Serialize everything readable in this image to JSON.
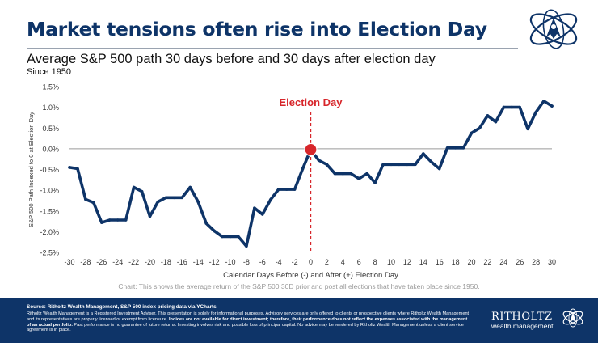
{
  "header": {
    "title": "Market tensions often rise into Election Day",
    "subtitle": "Average S&P 500 path 30 days before and 30 days after election day",
    "since": "Since 1950"
  },
  "chart_data": {
    "type": "line",
    "title": "Average S&P 500 path 30 days before and 30 days after election day",
    "xlabel": "Calendar Days Before (-) and After (+) Election Day",
    "ylabel": "S&P 500 Path Indexed to 0 at Election Day",
    "xlim": [
      -30,
      30
    ],
    "ylim": [
      -2.5,
      1.5
    ],
    "x_ticks": [
      "-30",
      "-28",
      "-26",
      "-24",
      "-22",
      "-20",
      "-18",
      "-16",
      "-14",
      "-12",
      "-10",
      "-8",
      "-6",
      "-4",
      "-2",
      "0",
      "2",
      "4",
      "6",
      "8",
      "10",
      "12",
      "14",
      "16",
      "18",
      "20",
      "22",
      "24",
      "26",
      "28",
      "30"
    ],
    "y_ticks": [
      "1.5%",
      "1.0%",
      "0.5%",
      "0.0%",
      "-0.5%",
      "-1.0%",
      "-1.5%",
      "-2.0%",
      "-2.5%"
    ],
    "y_tick_values": [
      1.5,
      1.0,
      0.5,
      0.0,
      -0.5,
      -1.0,
      -1.5,
      -2.0,
      -2.5
    ],
    "series": [
      {
        "name": "Average S&P 500 path",
        "color": "#0e3468",
        "x": [
          -30,
          -29,
          -28,
          -27,
          -26,
          -25,
          -24,
          -23,
          -22,
          -21,
          -20,
          -19,
          -18,
          -17,
          -16,
          -15,
          -14,
          -13,
          -12,
          -11,
          -10,
          -9,
          -8,
          -7,
          -6,
          -5,
          -4,
          -3,
          -2,
          -1,
          0,
          1,
          2,
          3,
          4,
          5,
          6,
          7,
          8,
          9,
          10,
          11,
          12,
          13,
          14,
          15,
          16,
          17,
          18,
          19,
          20,
          21,
          22,
          23,
          24,
          25,
          26,
          27,
          28,
          29,
          30
        ],
        "y": [
          -0.45,
          -0.48,
          -1.22,
          -1.3,
          -1.78,
          -1.72,
          -1.72,
          -1.72,
          -0.93,
          -1.03,
          -1.63,
          -1.28,
          -1.18,
          -1.18,
          -1.18,
          -0.93,
          -1.28,
          -1.8,
          -1.98,
          -2.12,
          -2.12,
          -2.12,
          -2.35,
          -1.43,
          -1.58,
          -1.23,
          -0.98,
          -0.98,
          -0.98,
          -0.48,
          -0.02,
          -0.28,
          -0.38,
          -0.6,
          -0.6,
          -0.6,
          -0.72,
          -0.6,
          -0.82,
          -0.38,
          -0.38,
          -0.38,
          -0.38,
          -0.38,
          -0.12,
          -0.32,
          -0.48,
          0.02,
          0.02,
          0.02,
          0.38,
          0.5,
          0.8,
          0.65,
          1.0,
          1.0,
          1.0,
          0.48,
          0.88,
          1.15,
          1.03
        ]
      }
    ],
    "annotations": [
      {
        "label": "Election Day",
        "x": 0,
        "color": "#d7262b"
      }
    ],
    "baseline": 0.0
  },
  "caption": "Chart: This shows the average return of the S&P 500 30D prior and post all elections that have taken place since 1950.",
  "footer": {
    "source": "Source: Ritholtz Wealth Management, S&P 500 index pricing data via YCharts",
    "disclaimer_1": "Ritholtz Wealth Management is a Registered Investment Adviser. This presentation is solely for informational purposes. Advisory services are only offered to clients or prospective clients where Ritholtz Wealth Management and its representatives are properly licensed or exempt from licensure. ",
    "disclaimer_bold": "Indices are not available for direct investment; therefore, their performance does not reflect the expenses associated with the management of an actual portfolio.",
    "disclaimer_2": " Past performance is no guarantee of future returns. Investing involves risk and possible loss of principal capital. No advice may be rendered by Ritholtz Wealth Management unless a client service agreement is in place.",
    "brand_name": "RITHOLTZ",
    "brand_sub": "wealth management"
  },
  "colors": {
    "navy": "#0e3468",
    "red": "#d7262b",
    "grid_axis": "#9a9a9a"
  },
  "icons": [
    "rwm-logo-icon"
  ]
}
